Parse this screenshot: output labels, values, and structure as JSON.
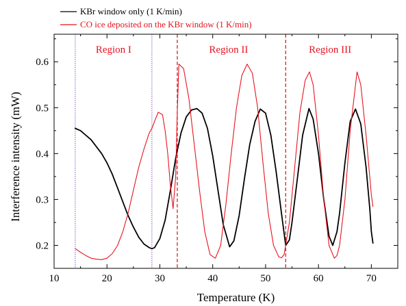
{
  "chart_data": {
    "type": "line",
    "xlabel": "Temperature (K)",
    "ylabel": "Interference intensity (mW)",
    "xlim": [
      10,
      75
    ],
    "ylim": [
      0.15,
      0.66
    ],
    "x_ticks": [
      "10",
      "20",
      "30",
      "40",
      "50",
      "60",
      "70"
    ],
    "y_ticks": [
      "0.2",
      "0.3",
      "0.4",
      "0.5",
      "0.6"
    ],
    "legend_placement": "top-left, outside plot",
    "legend": [
      {
        "label": "KBr window only (1 K/min)",
        "color": "#000000"
      },
      {
        "label": "CO ice deposited on the KBr window (1 K/min)",
        "color": "#e8121e"
      }
    ],
    "regions": [
      {
        "label": "Region I",
        "x_start": 14,
        "x_end": 28.5,
        "line_color": "#8a55c8"
      },
      {
        "label": "Region II",
        "x_start": 28.5,
        "x_end": 33.3,
        "line_color": "#c8121e"
      },
      {
        "label": "Region III",
        "x_start": 53.8,
        "x_end": 70.5,
        "line_color": "#c8121e"
      }
    ],
    "region_lines_x": [
      14,
      28.5,
      33.3,
      53.8
    ],
    "series": [
      {
        "name": "KBr window only (1 K/min)",
        "color": "#000000",
        "x": [
          14.0,
          15.0,
          16.0,
          17.0,
          18.0,
          19.0,
          20.0,
          21.0,
          22.0,
          23.0,
          24.0,
          25.0,
          26.0,
          27.0,
          28.0,
          28.5,
          29.0,
          30.0,
          31.0,
          32.0,
          33.0,
          34.0,
          35.0,
          36.0,
          37.0,
          38.0,
          39.0,
          40.0,
          41.0,
          42.0,
          43.2,
          44.0,
          45.0,
          46.0,
          47.0,
          48.0,
          49.0,
          50.0,
          51.0,
          52.0,
          53.0,
          53.8,
          54.5,
          55.0,
          56.0,
          57.0,
          58.2,
          59.0,
          60.0,
          61.0,
          62.0,
          62.7,
          63.5,
          64.0,
          65.0,
          66.0,
          67.0,
          68.0,
          69.0,
          69.7,
          70.0,
          70.3
        ],
        "y": [
          0.455,
          0.45,
          0.44,
          0.43,
          0.415,
          0.4,
          0.38,
          0.355,
          0.325,
          0.295,
          0.265,
          0.24,
          0.218,
          0.203,
          0.195,
          0.193,
          0.195,
          0.215,
          0.255,
          0.32,
          0.39,
          0.445,
          0.48,
          0.495,
          0.498,
          0.488,
          0.455,
          0.395,
          0.32,
          0.245,
          0.197,
          0.21,
          0.265,
          0.345,
          0.42,
          0.47,
          0.497,
          0.488,
          0.44,
          0.36,
          0.27,
          0.2,
          0.212,
          0.25,
          0.345,
          0.44,
          0.498,
          0.475,
          0.4,
          0.3,
          0.22,
          0.2,
          0.23,
          0.27,
          0.38,
          0.47,
          0.497,
          0.465,
          0.37,
          0.28,
          0.23,
          0.205
        ]
      },
      {
        "name": "CO ice deposited on the KBr window (1 K/min)",
        "color": "#e8121e",
        "x": [
          14.0,
          15.0,
          16.0,
          17.0,
          18.0,
          19.0,
          20.0,
          21.0,
          22.0,
          23.0,
          24.0,
          25.0,
          26.0,
          27.0,
          28.0,
          28.5,
          29.0,
          29.7,
          30.5,
          31.0,
          31.5,
          32.0,
          32.5,
          33.0,
          33.3,
          33.6,
          34.5,
          35.5,
          36.5,
          37.5,
          38.5,
          39.5,
          40.5,
          41.5,
          42.5,
          43.5,
          44.5,
          45.5,
          46.5,
          47.5,
          48.5,
          49.5,
          50.5,
          51.5,
          52.5,
          53.0,
          53.5,
          54.5,
          55.5,
          56.5,
          57.5,
          58.3,
          59.0,
          60.0,
          61.0,
          62.0,
          63.0,
          63.5,
          64.0,
          65.0,
          66.0,
          67.3,
          68.0,
          69.0,
          70.0,
          70.3
        ],
        "y": [
          0.193,
          0.185,
          0.178,
          0.172,
          0.17,
          0.169,
          0.172,
          0.182,
          0.2,
          0.23,
          0.27,
          0.32,
          0.37,
          0.41,
          0.445,
          0.455,
          0.47,
          0.49,
          0.485,
          0.45,
          0.4,
          0.33,
          0.28,
          0.35,
          0.49,
          0.595,
          0.585,
          0.52,
          0.42,
          0.32,
          0.23,
          0.18,
          0.172,
          0.2,
          0.29,
          0.4,
          0.5,
          0.57,
          0.595,
          0.575,
          0.5,
          0.38,
          0.27,
          0.2,
          0.175,
          0.173,
          0.18,
          0.25,
          0.37,
          0.49,
          0.56,
          0.578,
          0.55,
          0.44,
          0.3,
          0.2,
          0.172,
          0.178,
          0.2,
          0.3,
          0.45,
          0.578,
          0.55,
          0.44,
          0.31,
          0.285
        ]
      }
    ]
  }
}
